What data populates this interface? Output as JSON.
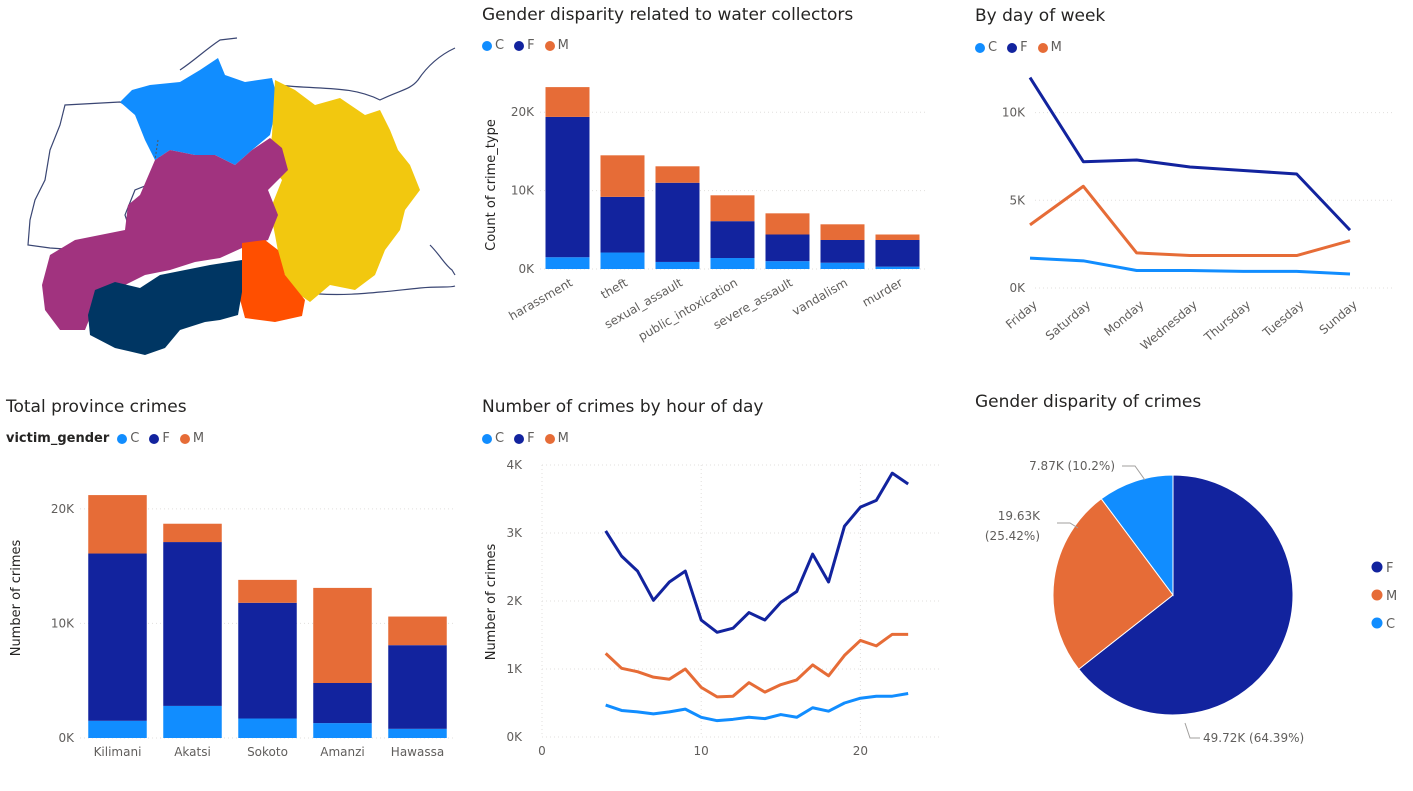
{
  "colors": {
    "C": "#118DFF",
    "F": "#12239E",
    "M": "#E66C37"
  },
  "map": {
    "regions": [
      {
        "name": "north-region",
        "color": "#118DFF"
      },
      {
        "name": "east-region",
        "color": "#F2C80F"
      },
      {
        "name": "central-region",
        "color": "#A1337F"
      },
      {
        "name": "southeast-region",
        "color": "#FF4F00"
      },
      {
        "name": "south-region",
        "color": "#003663"
      }
    ]
  },
  "chart_data": [
    {
      "id": "water",
      "type": "bar",
      "stacked": true,
      "title": "Gender disparity related to water collectors",
      "xlabel": "",
      "ylabel": "Count of crime_type",
      "legend": [
        "C",
        "F",
        "M"
      ],
      "categories": [
        "harassment",
        "theft",
        "sexual_assault",
        "public_intoxication",
        "severe_assault",
        "vandalism",
        "murder"
      ],
      "series": [
        {
          "name": "C",
          "values": [
            1500,
            2100,
            900,
            1400,
            1000,
            800,
            300
          ]
        },
        {
          "name": "F",
          "values": [
            17900,
            7100,
            10100,
            4700,
            3400,
            2900,
            3400
          ]
        },
        {
          "name": "M",
          "values": [
            3800,
            5300,
            2100,
            3300,
            2700,
            2000,
            700
          ]
        }
      ],
      "ylim": [
        0,
        25000
      ],
      "yticks": [
        "0K",
        "10K",
        "20K"
      ],
      "grid": true
    },
    {
      "id": "dow",
      "type": "line",
      "title": "By day of week",
      "legend": [
        "C",
        "F",
        "M"
      ],
      "categories": [
        "Friday",
        "Saturday",
        "Monday",
        "Wednesday",
        "Thursday",
        "Tuesday",
        "Sunday"
      ],
      "series": [
        {
          "name": "C",
          "values": [
            1700,
            1550,
            1000,
            1000,
            950,
            950,
            800
          ]
        },
        {
          "name": "F",
          "values": [
            12000,
            7200,
            7300,
            6900,
            6700,
            6500,
            3300
          ]
        },
        {
          "name": "M",
          "values": [
            3600,
            5800,
            2000,
            1850,
            1850,
            1850,
            2700
          ]
        }
      ],
      "ylim": [
        0,
        13000
      ],
      "yticks": [
        "0K",
        "5K",
        "10K"
      ],
      "grid": true
    },
    {
      "id": "province",
      "type": "bar",
      "stacked": true,
      "title": "Total province crimes",
      "legend_title": "victim_gender",
      "legend": [
        "C",
        "F",
        "M"
      ],
      "xlabel": "",
      "ylabel": "Number of crimes",
      "categories": [
        "Kilimani",
        "Akatsi",
        "Sokoto",
        "Amanzi",
        "Hawassa"
      ],
      "series": [
        {
          "name": "C",
          "values": [
            1500,
            2800,
            1700,
            1300,
            800
          ]
        },
        {
          "name": "F",
          "values": [
            14600,
            14300,
            10100,
            3500,
            7300
          ]
        },
        {
          "name": "M",
          "values": [
            5100,
            1600,
            2000,
            8300,
            2500
          ]
        }
      ],
      "ylim": [
        0,
        24000
      ],
      "yticks": [
        "0K",
        "10K",
        "20K"
      ],
      "grid": true
    },
    {
      "id": "hour",
      "type": "line",
      "title": "Number of crimes by hour of day",
      "legend": [
        "C",
        "F",
        "M"
      ],
      "ylabel": "Number of crimes",
      "x": [
        4,
        5,
        6,
        7,
        8,
        9,
        10,
        11,
        12,
        13,
        14,
        15,
        16,
        17,
        18,
        19,
        20,
        21,
        22,
        23
      ],
      "series": [
        {
          "name": "C",
          "values": [
            470,
            390,
            370,
            340,
            370,
            410,
            290,
            240,
            260,
            290,
            270,
            330,
            290,
            430,
            380,
            500,
            570,
            600,
            600,
            640
          ]
        },
        {
          "name": "F",
          "values": [
            3030,
            2660,
            2440,
            2010,
            2280,
            2440,
            1720,
            1540,
            1600,
            1830,
            1720,
            1980,
            2140,
            2690,
            2280,
            3100,
            3380,
            3480,
            3880,
            3720
          ]
        },
        {
          "name": "M",
          "values": [
            1230,
            1010,
            960,
            880,
            850,
            1000,
            730,
            590,
            600,
            800,
            660,
            770,
            840,
            1060,
            900,
            1200,
            1420,
            1340,
            1510,
            1510
          ]
        }
      ],
      "xlim": [
        0,
        25
      ],
      "ylim": [
        0,
        4000
      ],
      "xticks": [
        "0",
        "10",
        "20"
      ],
      "yticks": [
        "0K",
        "1K",
        "2K",
        "3K",
        "4K"
      ],
      "grid": true
    },
    {
      "id": "pie",
      "type": "pie",
      "title": "Gender disparity of crimes",
      "legend": [
        "F",
        "M",
        "C"
      ],
      "slices": [
        {
          "name": "F",
          "value": 49720,
          "label": "49.72K (64.39%)"
        },
        {
          "name": "M",
          "value": 19630,
          "label": "19.63K (25.42%)",
          "label_lines": [
            "19.63K",
            "(25.42%)"
          ]
        },
        {
          "name": "C",
          "value": 7870,
          "label": "7.87K (10.2%)"
        }
      ]
    }
  ]
}
